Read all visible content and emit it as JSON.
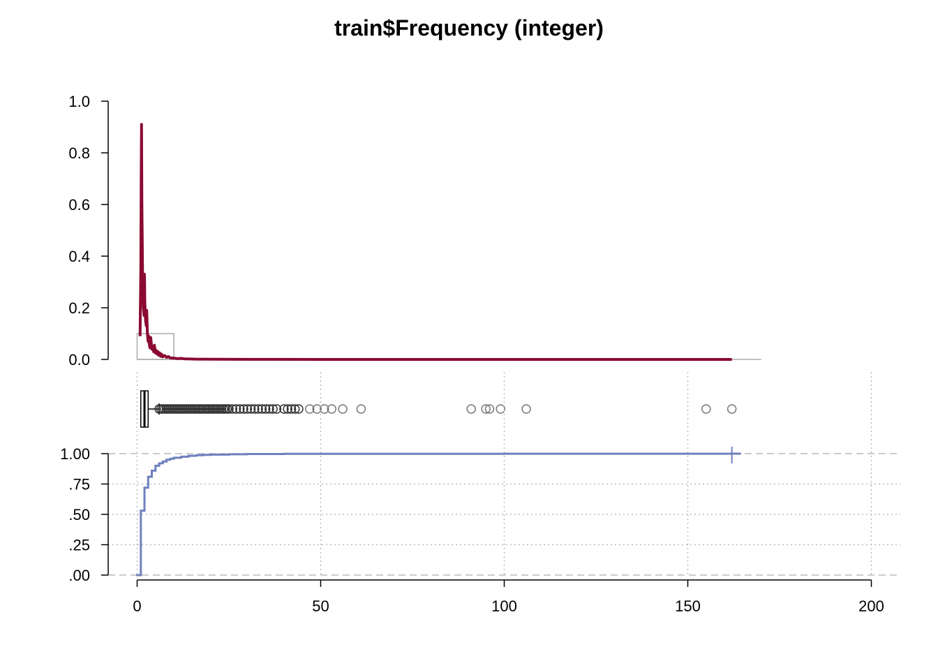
{
  "chart_data": [
    {
      "type": "line",
      "role": "density",
      "title": "train$Frequency (integer)",
      "ylim": [
        0,
        1.0
      ],
      "xlim": [
        0,
        200
      ],
      "y_ticks": [
        "0.0",
        "0.2",
        "0.4",
        "0.6",
        "0.8",
        "1.0"
      ],
      "y_tick_values": [
        0,
        0.2,
        0.4,
        0.6,
        0.8,
        1.0
      ],
      "color": "#8B0A32",
      "series": [
        {
          "x": [
            0.8,
            1.0,
            1.1,
            1.2,
            1.3,
            1.5,
            1.7,
            1.9,
            2.0,
            2.1,
            2.3,
            2.5,
            2.6,
            2.8,
            3.0,
            3.2,
            3.3,
            3.5,
            3.7,
            4.0,
            4.2,
            4.5,
            4.7,
            5.0,
            5.2,
            5.5,
            5.7,
            6.0,
            6.2,
            6.5,
            6.7,
            7.0,
            7.5,
            8.0,
            8.5,
            9.0,
            10,
            11,
            12,
            13,
            14,
            16,
            18,
            22,
            30,
            50,
            100,
            162
          ],
          "y": [
            0.09,
            0.35,
            0.7,
            0.91,
            0.6,
            0.3,
            0.2,
            0.17,
            0.33,
            0.22,
            0.15,
            0.13,
            0.19,
            0.1,
            0.07,
            0.09,
            0.06,
            0.045,
            0.085,
            0.04,
            0.05,
            0.03,
            0.055,
            0.025,
            0.035,
            0.02,
            0.03,
            0.015,
            0.025,
            0.012,
            0.02,
            0.01,
            0.015,
            0.008,
            0.011,
            0.006,
            0.005,
            0.003,
            0.004,
            0.002,
            0.002,
            0.001,
            0.001,
            0.0005,
            0.0003,
            0.0001,
            0.0,
            0.0
          ]
        }
      ],
      "reference_line_xlim": [
        0,
        170
      ],
      "inset_box": {
        "x": [
          0,
          10
        ],
        "y": [
          0,
          0.1
        ]
      }
    },
    {
      "type": "boxplot",
      "role": "boxplot",
      "box": {
        "min": 1,
        "q1": 1,
        "median": 2,
        "q3": 3,
        "whisker_high": 6
      },
      "outliers": [
        6,
        6.5,
        7,
        7.5,
        8,
        8.5,
        9,
        9.5,
        10,
        10.5,
        11,
        11.5,
        12,
        12.5,
        13,
        13.5,
        14,
        14.5,
        15,
        15.5,
        16,
        16.5,
        17,
        17.5,
        18,
        18.5,
        19,
        19.5,
        20,
        20.5,
        21,
        21.5,
        22,
        22.5,
        23,
        23.5,
        24,
        24.5,
        25,
        26,
        27,
        28,
        29,
        30,
        31,
        32,
        33,
        34,
        35,
        36,
        37,
        38,
        40,
        41,
        42,
        43,
        44,
        47,
        49,
        51,
        53,
        56,
        61,
        91,
        95,
        96,
        99,
        106,
        155,
        162
      ]
    },
    {
      "type": "line",
      "role": "ecdf",
      "ylim": [
        0,
        1
      ],
      "y_ticks": [
        ".00",
        ".25",
        ".50",
        ".75",
        "1.00"
      ],
      "y_tick_values": [
        0,
        0.25,
        0.5,
        0.75,
        1.0
      ],
      "x_ticks": [
        "0",
        "50",
        "100",
        "150",
        "200"
      ],
      "x_tick_values": [
        0,
        50,
        100,
        150,
        200
      ],
      "color": "#6F80BE",
      "series": [
        {
          "x": [
            1,
            2,
            3,
            4,
            5,
            6,
            7,
            8,
            9,
            10,
            12,
            14,
            16,
            18,
            20,
            25,
            30,
            40,
            60,
            100,
            162
          ],
          "y": [
            0.53,
            0.72,
            0.81,
            0.86,
            0.9,
            0.92,
            0.935,
            0.95,
            0.958,
            0.966,
            0.975,
            0.982,
            0.987,
            0.99,
            0.992,
            0.995,
            0.997,
            0.998,
            0.999,
            0.9995,
            1.0
          ]
        }
      ]
    }
  ]
}
